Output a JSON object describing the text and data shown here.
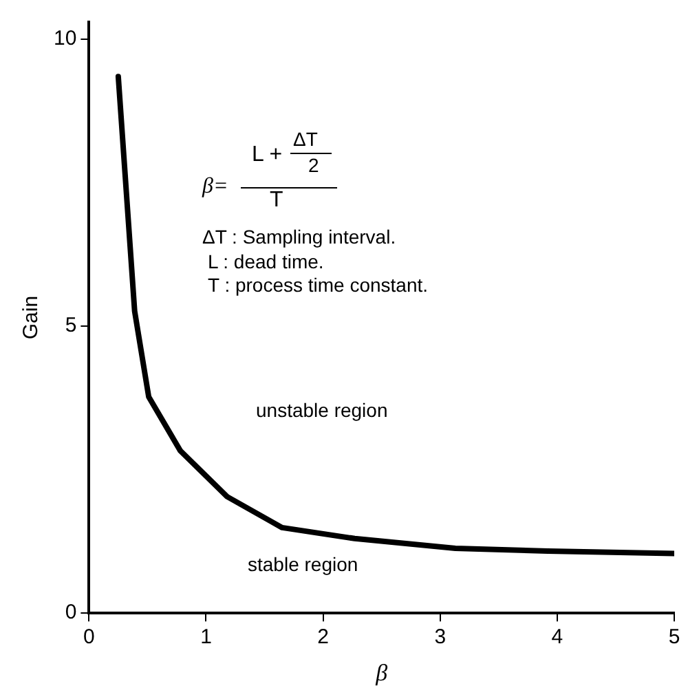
{
  "chart_data": {
    "type": "line",
    "xlabel": "β",
    "ylabel": "Gain",
    "x": [
      0.25,
      0.39,
      0.51,
      0.78,
      1.18,
      1.65,
      2.27,
      3.13,
      3.92,
      5.0
    ],
    "values": [
      9.35,
      5.26,
      3.77,
      2.83,
      2.03,
      1.49,
      1.3,
      1.13,
      1.08,
      1.04
    ],
    "color": "#000000",
    "marker": "none",
    "line_style": "solid",
    "xlim": [
      0,
      5
    ],
    "xticks": [
      0,
      1,
      2,
      3,
      4,
      5
    ],
    "ylim": [
      0,
      10.3
    ],
    "yticks": [
      0,
      5,
      10
    ],
    "grid": false,
    "legend": false,
    "annotations": [
      "β=",
      "L + ",
      "ΔT",
      "2",
      "T",
      "ΔT : Sampling interval.",
      "L  : dead time.",
      "T  : process time constant.",
      "unstable region",
      "stable region"
    ]
  }
}
